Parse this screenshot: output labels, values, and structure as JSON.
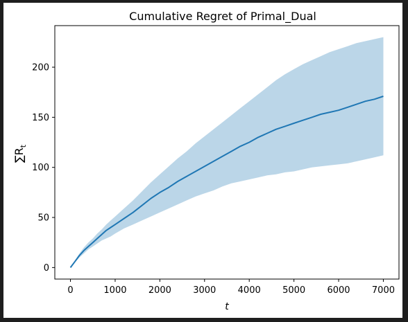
{
  "chart_data": {
    "type": "line",
    "title": "Cumulative Regret of Primal_Dual",
    "xlabel": "t",
    "ylabel": "∑R",
    "ylabel_subscript": "t",
    "xlim": [
      -350,
      7350
    ],
    "ylim": [
      -11.5,
      241.5
    ],
    "xticks": [
      0,
      1000,
      2000,
      3000,
      4000,
      5000,
      6000,
      7000
    ],
    "yticks": [
      0,
      50,
      100,
      150,
      200
    ],
    "grid": false,
    "colors": {
      "line": "#1f77b4",
      "band": "#1f77b4",
      "band_opacity": 0.3
    },
    "series": [
      {
        "x": [
          0,
          100,
          200,
          300,
          400,
          500,
          600,
          700,
          800,
          900,
          1000,
          1200,
          1400,
          1600,
          1800,
          2000,
          2200,
          2400,
          2600,
          2800,
          3000,
          3200,
          3400,
          3600,
          3800,
          4000,
          4200,
          4400,
          4600,
          4800,
          5000,
          5200,
          5400,
          5600,
          5800,
          6000,
          6200,
          6400,
          6600,
          6800,
          7000
        ],
        "mean": [
          0,
          6,
          12,
          17,
          21,
          25,
          29,
          33,
          37,
          40,
          43,
          49,
          55,
          62,
          69,
          75,
          80,
          86,
          91,
          96,
          101,
          106,
          111,
          116,
          121,
          125,
          130,
          134,
          138,
          141,
          144,
          147,
          150,
          153,
          155,
          157,
          160,
          163,
          166,
          168,
          171
        ],
        "lower": [
          0,
          5,
          10,
          14,
          18,
          21,
          24,
          27,
          29,
          31,
          34,
          39,
          43,
          47,
          51,
          55,
          59,
          63,
          67,
          71,
          74,
          77,
          81,
          84,
          86,
          88,
          90,
          92,
          93,
          95,
          96,
          98,
          100,
          101,
          102,
          103,
          104,
          106,
          108,
          110,
          112
        ],
        "upper": [
          0,
          7,
          14,
          20,
          25,
          29,
          34,
          38,
          43,
          47,
          51,
          59,
          67,
          76,
          85,
          93,
          101,
          109,
          116,
          124,
          131,
          138,
          145,
          152,
          159,
          166,
          173,
          180,
          187,
          193,
          198,
          203,
          207,
          211,
          215,
          218,
          221,
          224,
          226,
          228,
          230
        ]
      }
    ]
  }
}
